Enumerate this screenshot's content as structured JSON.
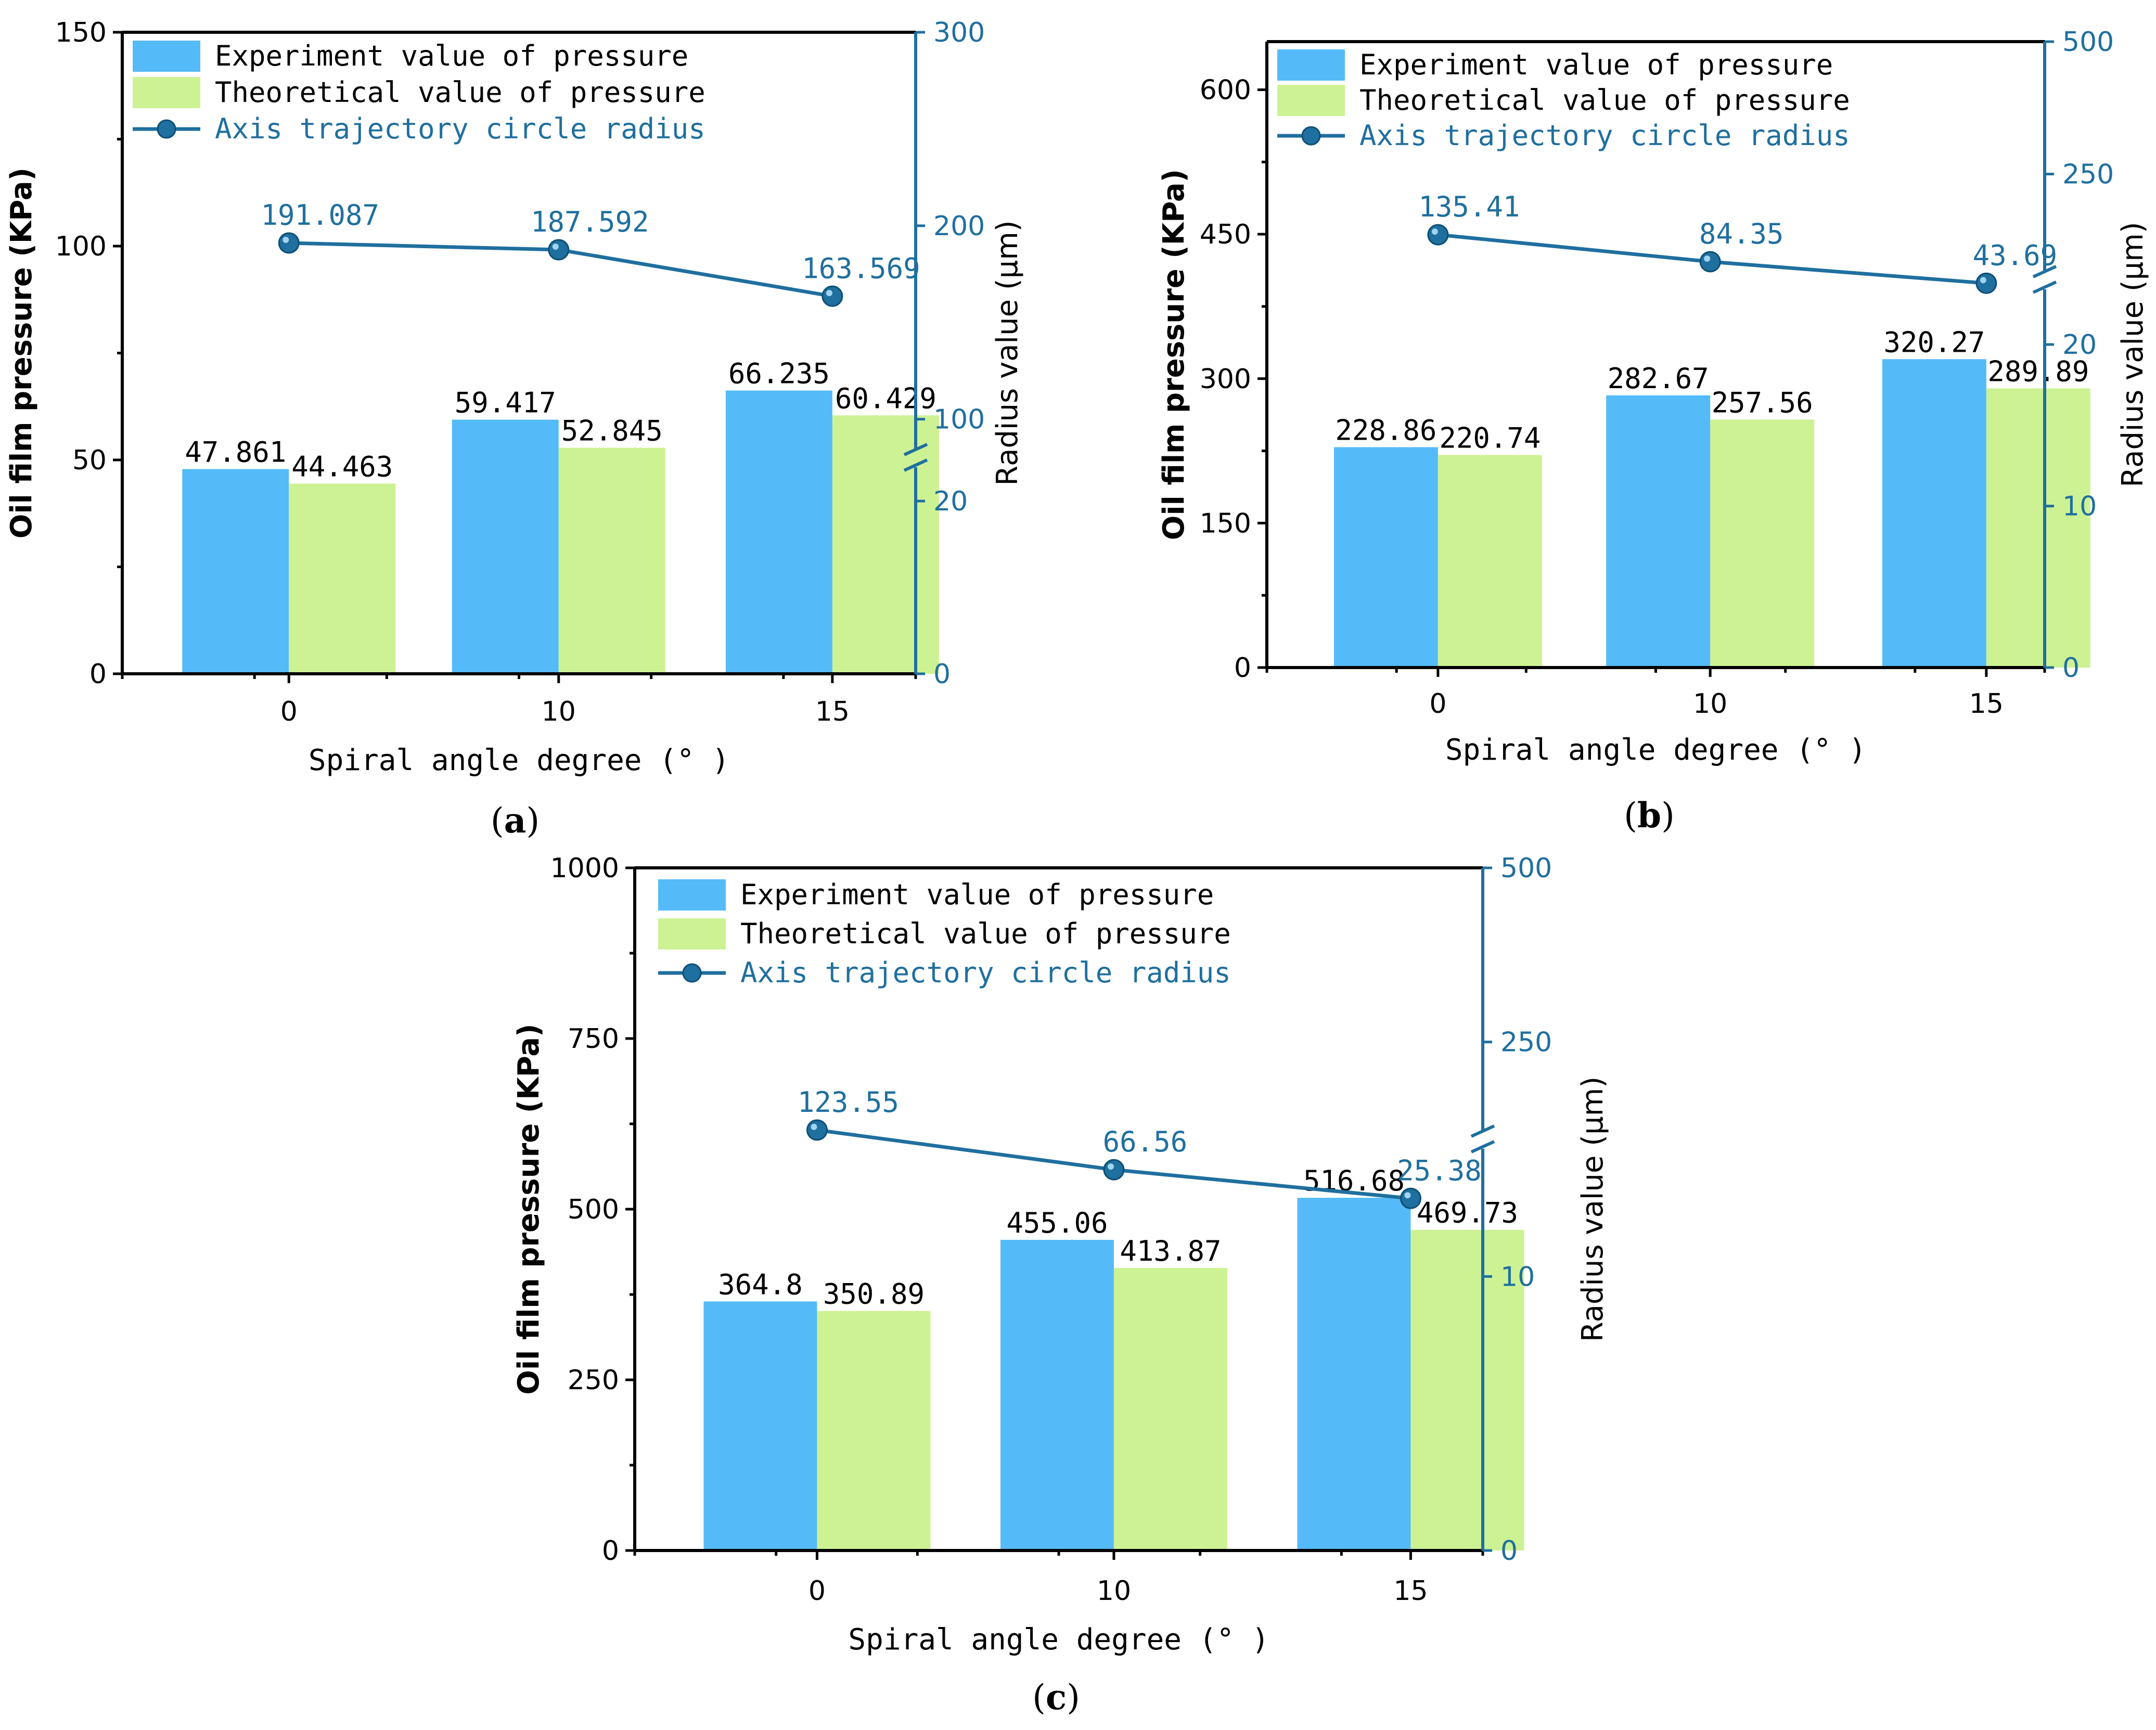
{
  "colors": {
    "experiment": "#55bbf8",
    "theoretical": "#cdf294",
    "line": "#1f6f9f",
    "marker": "#1f6f9f"
  },
  "chart_data": [
    {
      "type": "bar",
      "panel": "a",
      "panel_label": "(a)",
      "categories": [
        "0",
        "10",
        "15"
      ],
      "xlabel": "Spiral angle degree (° )",
      "ylabel": "Oil film pressure (KPa)",
      "y2label": "Radius value (μm)",
      "ylim": [
        0,
        150
      ],
      "yticks": [
        "0",
        "50",
        "100",
        "150"
      ],
      "y2ticks_lower": [
        "0",
        "20"
      ],
      "y2ticks_upper": [
        "100",
        "200",
        "300"
      ],
      "legend": [
        "Experiment value of pressure",
        "Theoretical value of pressure",
        "Axis trajectory circle radius"
      ],
      "series": [
        {
          "name": "Experiment value of pressure",
          "values": [
            47.861,
            59.417,
            66.235
          ],
          "labels": [
            "47.861",
            "59.417",
            "66.235"
          ]
        },
        {
          "name": "Theoretical value of pressure",
          "values": [
            44.463,
            52.845,
            60.429
          ],
          "labels": [
            "44.463",
            "52.845",
            "60.429"
          ]
        },
        {
          "name": "Axis trajectory circle radius",
          "type": "line",
          "axis": "right",
          "values": [
            191.087,
            187.592,
            163.569
          ],
          "labels": [
            "191.087",
            "187.592",
            "163.569"
          ]
        }
      ]
    },
    {
      "type": "bar",
      "panel": "b",
      "panel_label": "(b)",
      "categories": [
        "0",
        "10",
        "15"
      ],
      "xlabel": "Spiral angle degree (° )",
      "ylabel": "Oil film pressure (KPa)",
      "y2label": "Radius value (μm)",
      "ylim": [
        0,
        650
      ],
      "yticks": [
        "0",
        "150",
        "300",
        "450",
        "600"
      ],
      "y2ticks_lower": [
        "0",
        "10",
        "20"
      ],
      "y2ticks_upper": [
        "250",
        "500"
      ],
      "legend": [
        "Experiment value of pressure",
        "Theoretical value of pressure",
        "Axis trajectory circle radius"
      ],
      "series": [
        {
          "name": "Experiment value of pressure",
          "values": [
            228.86,
            282.67,
            320.27
          ],
          "labels": [
            "228.86",
            "282.67",
            "320.27"
          ]
        },
        {
          "name": "Theoretical value of pressure",
          "values": [
            220.74,
            257.56,
            289.89
          ],
          "labels": [
            "220.74",
            "257.56",
            "289.89"
          ]
        },
        {
          "name": "Axis trajectory circle radius",
          "type": "line",
          "axis": "right",
          "values": [
            135.41,
            84.35,
            43.69
          ],
          "labels": [
            "135.41",
            "84.35",
            "43.69"
          ]
        }
      ]
    },
    {
      "type": "bar",
      "panel": "c",
      "panel_label": "(c)",
      "categories": [
        "0",
        "10",
        "15"
      ],
      "xlabel": "Spiral angle degree (° )",
      "ylabel": "Oil film pressure (KPa)",
      "y2label": "Radius value (μm)",
      "ylim": [
        0,
        1000
      ],
      "yticks": [
        "0",
        "250",
        "500",
        "750",
        "1000"
      ],
      "y2ticks_lower": [
        "0",
        "10"
      ],
      "y2ticks_upper": [
        "250",
        "500"
      ],
      "legend": [
        "Experiment value of pressure",
        "Theoretical value of pressure",
        "Axis trajectory circle radius"
      ],
      "series": [
        {
          "name": "Experiment value of pressure",
          "values": [
            364.8,
            455.06,
            516.68
          ],
          "labels": [
            "364.8",
            "455.06",
            "516.68"
          ]
        },
        {
          "name": "Theoretical value of pressure",
          "values": [
            350.89,
            413.87,
            469.73
          ],
          "labels": [
            "350.89",
            "413.87",
            "469.73"
          ]
        },
        {
          "name": "Axis trajectory circle radius",
          "type": "line",
          "axis": "right",
          "values": [
            123.55,
            66.56,
            25.38
          ],
          "labels": [
            "123.55",
            "66.56",
            "25.38"
          ]
        }
      ]
    }
  ]
}
